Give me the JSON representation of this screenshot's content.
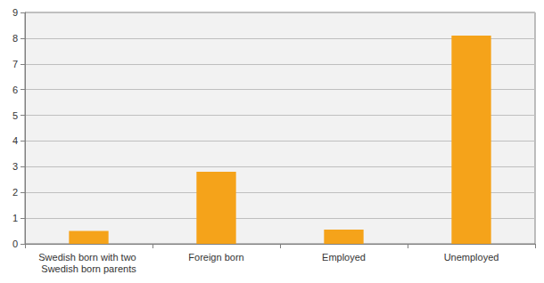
{
  "chart_data": {
    "type": "bar",
    "categories": [
      "Swedish born with two Swedish born parents",
      "Foreign born",
      "Employed",
      "Unemployed"
    ],
    "values": [
      0.5,
      2.8,
      0.55,
      8.1
    ],
    "color": "#f5a31a",
    "ylim": [
      0,
      9
    ],
    "yticks": [
      0,
      1,
      2,
      3,
      4,
      5,
      6,
      7,
      8,
      9
    ],
    "grid": true
  }
}
